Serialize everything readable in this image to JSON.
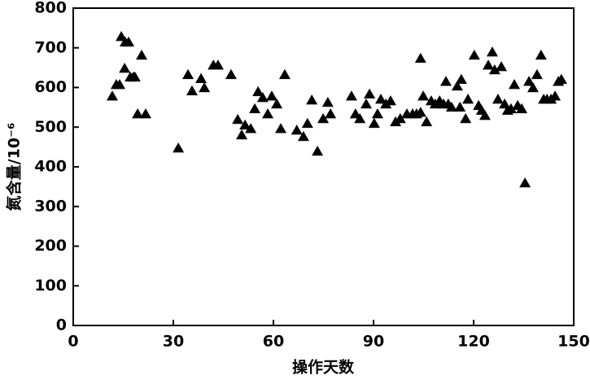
{
  "chart_data": {
    "type": "scatter",
    "xlabel": "操作天数",
    "ylabel": "氮含量/10⁻⁶",
    "xlim": [
      0,
      150
    ],
    "xticks": [
      0,
      30,
      60,
      90,
      120,
      150
    ],
    "ylim": [
      0,
      800
    ],
    "yticks": [
      0,
      100,
      200,
      300,
      400,
      500,
      600,
      700,
      800
    ],
    "color": "#000000",
    "x": [
      11.7,
      12.9,
      13.9,
      14.4,
      15.6,
      15.4,
      16.6,
      17.1,
      18.0,
      18.5,
      19.3,
      20.5,
      21.7,
      31.5,
      34.4,
      35.6,
      38.3,
      39.3,
      42.0,
      43.4,
      47.3,
      49.3,
      50.5,
      51.5,
      53.2,
      54.4,
      55.4,
      56.8,
      58.3,
      59.5,
      61.0,
      62.2,
      63.4,
      67.0,
      69.0,
      70.2,
      71.5,
      73.2,
      74.9,
      76.3,
      77.1,
      83.4,
      84.6,
      85.9,
      87.8,
      88.8,
      90.2,
      91.2,
      92.2,
      93.7,
      95.1,
      96.6,
      98.0,
      100.0,
      101.7,
      102.9,
      104.1,
      104.1,
      104.9,
      105.9,
      107.3,
      108.5,
      109.8,
      111.0,
      111.7,
      112.4,
      113.4,
      115.1,
      115.9,
      116.3,
      117.6,
      118.3,
      120.2,
      121.5,
      122.4,
      123.4,
      124.4,
      125.6,
      126.3,
      127.3,
      128.3,
      129.3,
      130.2,
      131.2,
      132.2,
      133.2,
      134.4,
      135.4,
      136.6,
      137.8,
      139.0,
      140.2,
      141.0,
      142.0,
      143.2,
      144.4,
      145.4,
      146.3
    ],
    "y": [
      578,
      607,
      607,
      728,
      714,
      648,
      714,
      626,
      626,
      626,
      533,
      681,
      533,
      447,
      632,
      591,
      622,
      599,
      656,
      656,
      632,
      519,
      480,
      505,
      496,
      546,
      589,
      574,
      533,
      578,
      558,
      496,
      632,
      492,
      476,
      509,
      568,
      439,
      521,
      562,
      533,
      578,
      533,
      521,
      558,
      583,
      509,
      533,
      570,
      558,
      566,
      513,
      521,
      533,
      533,
      533,
      537,
      673,
      578,
      513,
      566,
      558,
      566,
      558,
      615,
      558,
      550,
      603,
      550,
      620,
      521,
      570,
      681,
      554,
      542,
      529,
      656,
      689,
      644,
      570,
      652,
      558,
      542,
      546,
      607,
      554,
      546,
      359,
      615,
      599,
      632,
      681,
      570,
      570,
      570,
      578,
      615,
      620
    ]
  }
}
